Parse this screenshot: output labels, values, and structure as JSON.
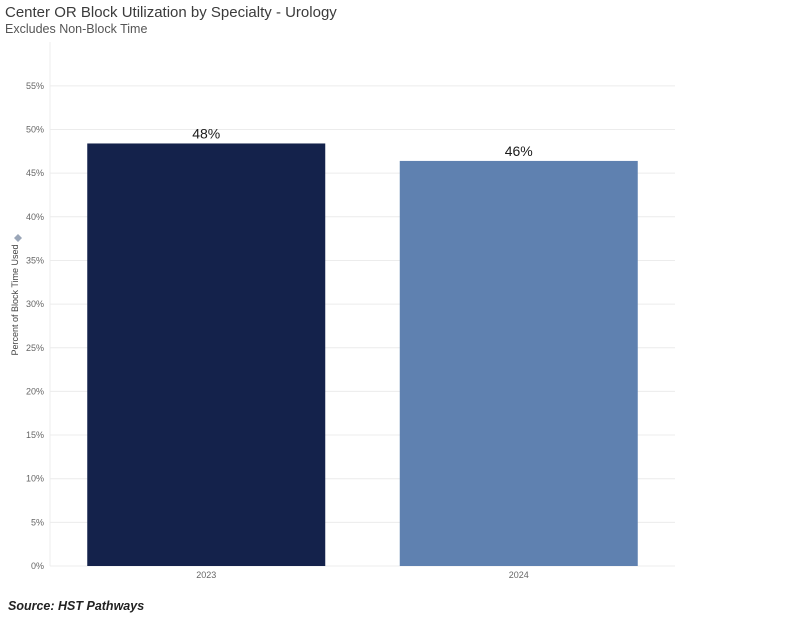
{
  "header": {
    "title": "Center OR Block Utilization by Specialty - Urology",
    "subtitle": "Excludes Non-Block Time"
  },
  "footer": {
    "source": "Source: HST Pathways"
  },
  "chart_data": {
    "type": "bar",
    "title": "Center OR Block Utilization by Specialty - Urology",
    "subtitle": "Excludes Non-Block Time",
    "categories": [
      "2023",
      "2024"
    ],
    "values": [
      48.4,
      46.4
    ],
    "data_labels": [
      "48%",
      "46%"
    ],
    "bar_colors": [
      "#14224b",
      "#5f81b0"
    ],
    "xlabel": "",
    "ylabel": "Percent of Block Time Used",
    "ylim": [
      0,
      60
    ],
    "yticks": [
      0,
      5,
      10,
      15,
      20,
      25,
      30,
      35,
      40,
      45,
      50,
      55
    ],
    "ytick_labels": [
      "0%",
      "5%",
      "10%",
      "15%",
      "20%",
      "25%",
      "30%",
      "35%",
      "40%",
      "45%",
      "50%",
      "55%"
    ],
    "grid": true,
    "legend": "none"
  }
}
